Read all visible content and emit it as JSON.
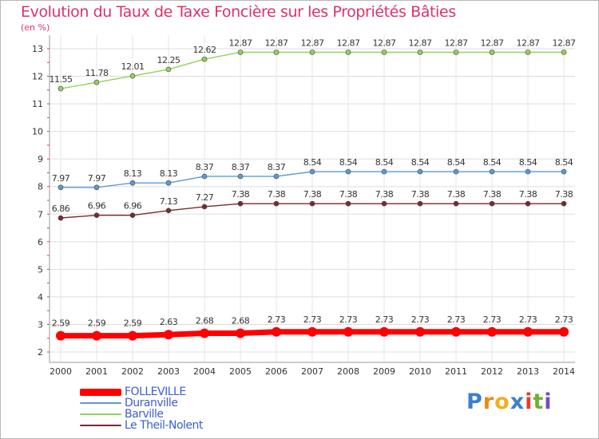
{
  "chart_data": {
    "type": "line",
    "title": "Evolution du Taux de Taxe Foncière sur les Propriétés Bâties",
    "ylabel": "(en %)",
    "xlabel": "",
    "ylim": [
      2,
      13
    ],
    "yticks": [
      2,
      3,
      4,
      5,
      6,
      7,
      8,
      9,
      10,
      11,
      12,
      13
    ],
    "categories": [
      "2000",
      "2001",
      "2002",
      "2003",
      "2004",
      "2005",
      "2006",
      "2007",
      "2008",
      "2009",
      "2010",
      "2011",
      "2012",
      "2013",
      "2014"
    ],
    "series": [
      {
        "name": "FOLLEVILLE",
        "color": "#ff0000",
        "values": [
          2.59,
          2.59,
          2.59,
          2.63,
          2.68,
          2.68,
          2.73,
          2.73,
          2.73,
          2.73,
          2.73,
          2.73,
          2.73,
          2.73,
          2.73
        ],
        "labels": [
          "2.59",
          "2.59",
          "2.59",
          "2.63",
          "2.68",
          "2.68",
          "2.73",
          "2.73",
          "2.73",
          "2.73",
          "2.73",
          "2.73",
          "2.73",
          "2.73",
          "2.73"
        ]
      },
      {
        "name": "Duranville",
        "color": "#5a9bd5",
        "values": [
          7.97,
          7.97,
          8.13,
          8.13,
          8.37,
          8.37,
          8.37,
          8.54,
          8.54,
          8.54,
          8.54,
          8.54,
          8.54,
          8.54,
          8.54
        ],
        "labels": [
          "7.97",
          "7.97",
          "8.13",
          "8.13",
          "8.37",
          "8.37",
          "8.37",
          "8.54",
          "8.54",
          "8.54",
          "8.54",
          "8.54",
          "8.54",
          "8.54",
          "8.54"
        ]
      },
      {
        "name": "Barville",
        "color": "#8fd45a",
        "values": [
          11.55,
          11.78,
          12.01,
          12.25,
          12.62,
          12.87,
          12.87,
          12.87,
          12.87,
          12.87,
          12.87,
          12.87,
          12.87,
          12.87,
          12.87
        ],
        "labels": [
          "11.55",
          "11.78",
          "12.01",
          "12.25",
          "12.62",
          "12.87",
          "12.87",
          "12.87",
          "12.87",
          "12.87",
          "12.87",
          "12.87",
          "12.87",
          "12.87",
          "12.87"
        ]
      },
      {
        "name": "Le Theil-Nolent",
        "color": "#7a2a2a",
        "values": [
          6.86,
          6.96,
          6.96,
          7.13,
          7.27,
          7.38,
          7.38,
          7.38,
          7.38,
          7.38,
          7.38,
          7.38,
          7.38,
          7.38,
          7.38
        ],
        "labels": [
          "6.86",
          "6.96",
          "6.96",
          "7.13",
          "7.27",
          "7.38",
          "7.38",
          "7.38",
          "7.38",
          "7.38",
          "7.38",
          "7.38",
          "7.38",
          "7.38",
          "7.38"
        ]
      }
    ],
    "legend_position": "bottom-left",
    "grid": true
  },
  "logo": {
    "letters": [
      "P",
      "r",
      "o",
      "x",
      "i",
      "t",
      "i"
    ],
    "colors": [
      "#3a7fd0",
      "#e88a1a",
      "#f0b020",
      "#3a7fd0",
      "#e04030",
      "#70b030",
      "#7a4ac0"
    ]
  }
}
